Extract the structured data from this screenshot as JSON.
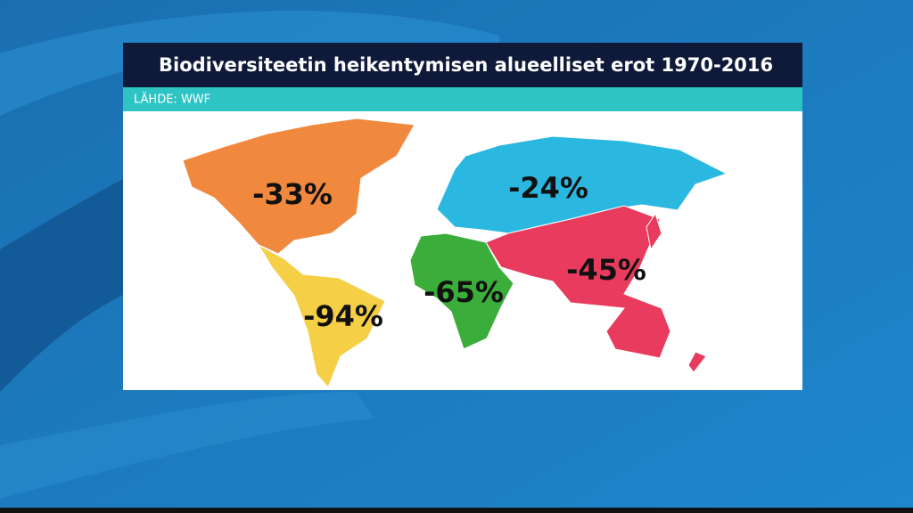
{
  "header": {
    "title": "Biodiversiteetin heikentymisen alueelliset erot 1970-2016",
    "source": "LÄHDE: WWF"
  },
  "regions": [
    {
      "label": "-33%",
      "color": "#f0883e"
    },
    {
      "label": "-94%",
      "color": "#f5cf45"
    },
    {
      "label": "-65%",
      "color": "#3aad3a"
    },
    {
      "label": "-24%",
      "color": "#2bb8e0"
    },
    {
      "label": "-45%",
      "color": "#e83b5d"
    }
  ]
}
